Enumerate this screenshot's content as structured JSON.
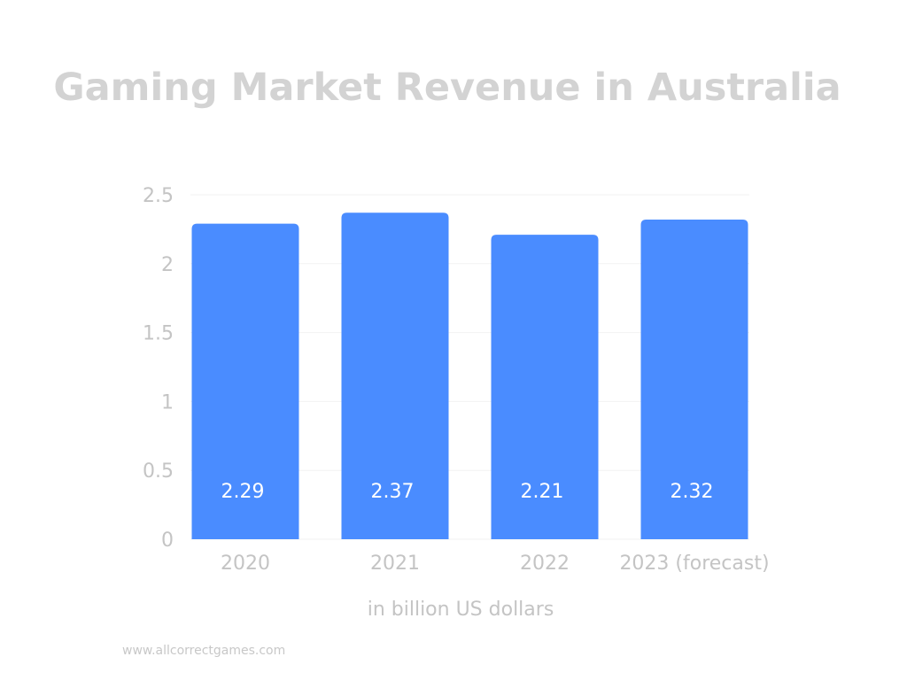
{
  "title": "Gaming Market Revenue in Australia",
  "source_text": "www.allcorrectgames.com",
  "colors": {
    "bar": "#4a8cff",
    "text_muted": "#c4c4c4",
    "grid": "#f2f2f2"
  },
  "chart_data": {
    "type": "bar",
    "title": "Gaming Market Revenue in Australia",
    "categories": [
      "2020",
      "2021",
      "2022",
      "2023 (forecast)"
    ],
    "values": [
      2.29,
      2.37,
      2.21,
      2.32
    ],
    "value_labels": [
      "2.29",
      "2.37",
      "2.21",
      "2.32"
    ],
    "xlabel": "in billion US dollars",
    "ylabel": "",
    "ylim": [
      0,
      2.5
    ],
    "yticks": [
      "0",
      "0.5",
      "1",
      "1.5",
      "2",
      "2.5"
    ],
    "ytick_values": [
      0,
      0.5,
      1,
      1.5,
      2,
      2.5
    ],
    "grid": true,
    "legend": "none"
  }
}
